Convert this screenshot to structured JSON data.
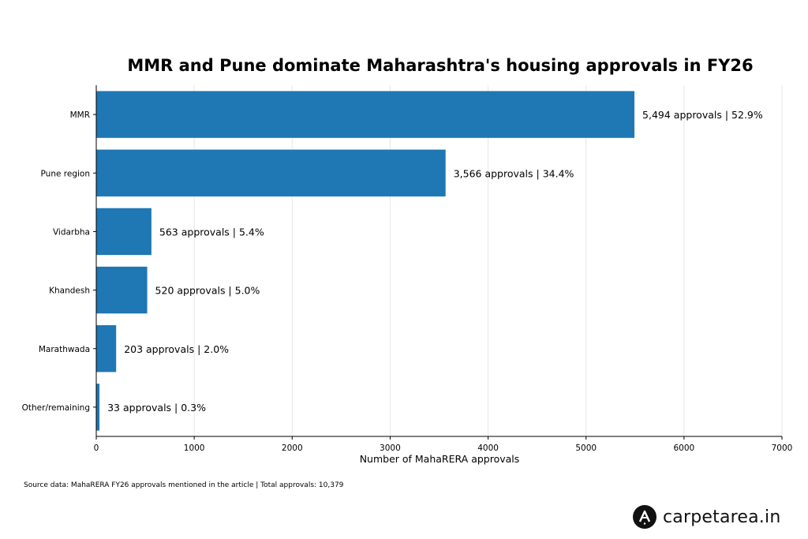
{
  "chart_data": {
    "type": "bar",
    "orientation": "horizontal",
    "title": "MMR and Pune dominate Maharashtra's housing approvals in FY26",
    "categories": [
      "MMR",
      "Pune region",
      "Vidarbha",
      "Khandesh",
      "Marathwada",
      "Other/remaining"
    ],
    "values": [
      5494,
      3566,
      563,
      520,
      203,
      33
    ],
    "data_labels": [
      "5,494 approvals | 52.9%",
      "3,566 approvals | 34.4%",
      "563 approvals | 5.4%",
      "520 approvals | 5.0%",
      "203 approvals | 2.0%",
      "33 approvals | 0.3%"
    ],
    "xlabel": "Number of MahaRERA approvals",
    "ylabel": "",
    "xlim": [
      0,
      7000
    ],
    "xticks": [
      0,
      1000,
      2000,
      3000,
      4000,
      5000,
      6000,
      7000
    ],
    "xtick_labels": [
      "0",
      "1000",
      "2000",
      "3000",
      "4000",
      "5000",
      "6000",
      "7000"
    ],
    "grid": "vertical",
    "bar_color": "#1f77b4"
  },
  "footer": {
    "source": "Source data: MahaRERA FY26 approvals mentioned in the article | Total approvals: 10,379"
  },
  "brand": {
    "name": "carpetarea.in",
    "icon": "carpetarea-logo-icon"
  }
}
